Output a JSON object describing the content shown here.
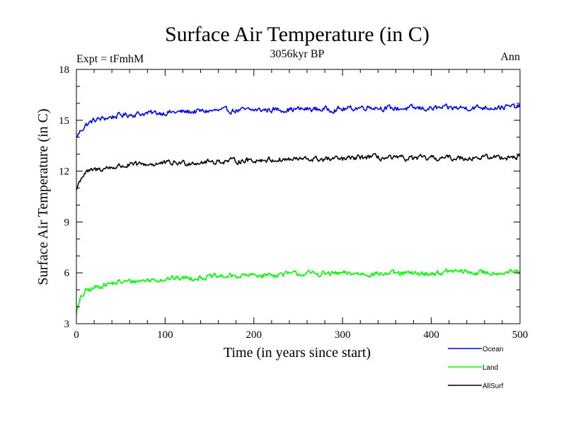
{
  "chart_data": {
    "type": "line",
    "title": "Surface Air Temperature (in C)",
    "subtitle": "3056kyr BP",
    "left_label": "Expt = tFmhM",
    "right_label": "Ann",
    "xlabel": "Time (in years since start)",
    "ylabel": "Surface Air Temperature (in C)",
    "xlim": [
      0,
      500
    ],
    "ylim": [
      3,
      18
    ],
    "xticks": [
      0,
      100,
      200,
      300,
      400,
      500
    ],
    "yticks": [
      3,
      6,
      9,
      12,
      15,
      18
    ],
    "legend_position": "bottom-right",
    "series": [
      {
        "name": "Ocean",
        "color": "#0000ff",
        "x": [
          0,
          5,
          10,
          20,
          30,
          50,
          75,
          100,
          150,
          200,
          250,
          300,
          330,
          350,
          400,
          450,
          500
        ],
        "values": [
          14.0,
          14.4,
          14.7,
          15.0,
          15.1,
          15.3,
          15.4,
          15.45,
          15.55,
          15.6,
          15.65,
          15.65,
          15.8,
          15.7,
          15.7,
          15.75,
          15.8
        ]
      },
      {
        "name": "Land",
        "color": "#00ff00",
        "x": [
          0,
          5,
          10,
          20,
          30,
          50,
          75,
          100,
          150,
          200,
          250,
          300,
          350,
          400,
          425,
          450,
          500
        ],
        "values": [
          3.7,
          4.5,
          4.9,
          5.1,
          5.3,
          5.45,
          5.55,
          5.65,
          5.75,
          5.85,
          5.95,
          5.95,
          5.95,
          5.95,
          6.1,
          6.0,
          6.05
        ]
      },
      {
        "name": "AllSurf",
        "color": "#000000",
        "x": [
          0,
          5,
          10,
          20,
          30,
          50,
          75,
          100,
          150,
          200,
          250,
          300,
          330,
          350,
          400,
          450,
          500
        ],
        "values": [
          10.9,
          11.6,
          11.9,
          12.05,
          12.15,
          12.3,
          12.4,
          12.45,
          12.55,
          12.65,
          12.7,
          12.7,
          12.85,
          12.75,
          12.75,
          12.8,
          12.85
        ]
      }
    ]
  }
}
